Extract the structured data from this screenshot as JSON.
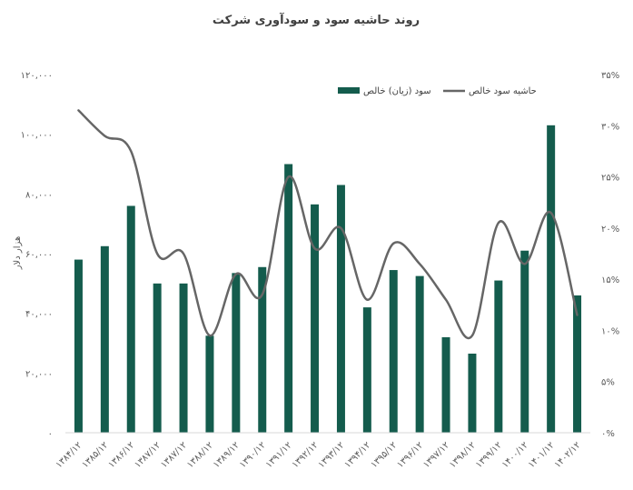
{
  "chart_data": {
    "type": "bar+line",
    "title": "روند حاشیه سود و سودآوری شرکت",
    "ylabel_left": "هزار دلار",
    "categories": [
      "۱۳۸۴/۱۲",
      "۱۳۸۵/۱۲",
      "۱۳۸۶/۱۲",
      "۱۳۸۷/۱۲",
      "۱۳۸۷/۱۲",
      "۱۳۸۸/۱۲",
      "۱۳۸۹/۱۲",
      "۱۳۹۰/۱۲",
      "۱۳۹۱/۱۲",
      "۱۳۹۲/۱۲",
      "۱۳۹۳/۱۲",
      "۱۳۹۴/۱۲",
      "۱۳۹۵/۱۲",
      "۱۳۹۶/۱۲",
      "۱۳۹۷/۱۲",
      "۱۳۹۸/۱۲",
      "۱۳۹۹/۱۲",
      "۱۴۰۰/۱۲",
      "۱۴۰۱/۱۲",
      "۱۴۰۲/۱۲"
    ],
    "series": [
      {
        "name": "سود (زیان) خالص",
        "type": "bar",
        "axis": "left",
        "color": "#145C4D",
        "values": [
          58000,
          62500,
          76000,
          50000,
          50000,
          32500,
          53500,
          55500,
          90000,
          76500,
          83000,
          42000,
          54500,
          52500,
          32000,
          26500,
          51000,
          61000,
          103000,
          46000
        ]
      },
      {
        "name": "حاشیه سود خالص",
        "type": "line",
        "axis": "right",
        "color": "#666666",
        "values": [
          31.5,
          29.0,
          27.5,
          17.5,
          17.5,
          9.5,
          15.5,
          13.5,
          25.0,
          18.0,
          20.0,
          13.0,
          18.5,
          16.5,
          13.0,
          9.5,
          20.5,
          16.5,
          21.5,
          11.5
        ]
      }
    ],
    "yticks_left": [
      "۰",
      "۲۰,۰۰۰",
      "۴۰,۰۰۰",
      "۶۰,۰۰۰",
      "۸۰,۰۰۰",
      "۱۰۰,۰۰۰",
      "۱۲۰,۰۰۰"
    ],
    "yticks_right": [
      "۰%",
      "۵%",
      "۱۰%",
      "۱۵%",
      "۲۰%",
      "۲۵%",
      "۳۰%",
      "۳۵%"
    ],
    "ylim_left": [
      0,
      120000
    ],
    "ylim_right": [
      0,
      35
    ],
    "legend_position": "top-right",
    "grid": false
  }
}
